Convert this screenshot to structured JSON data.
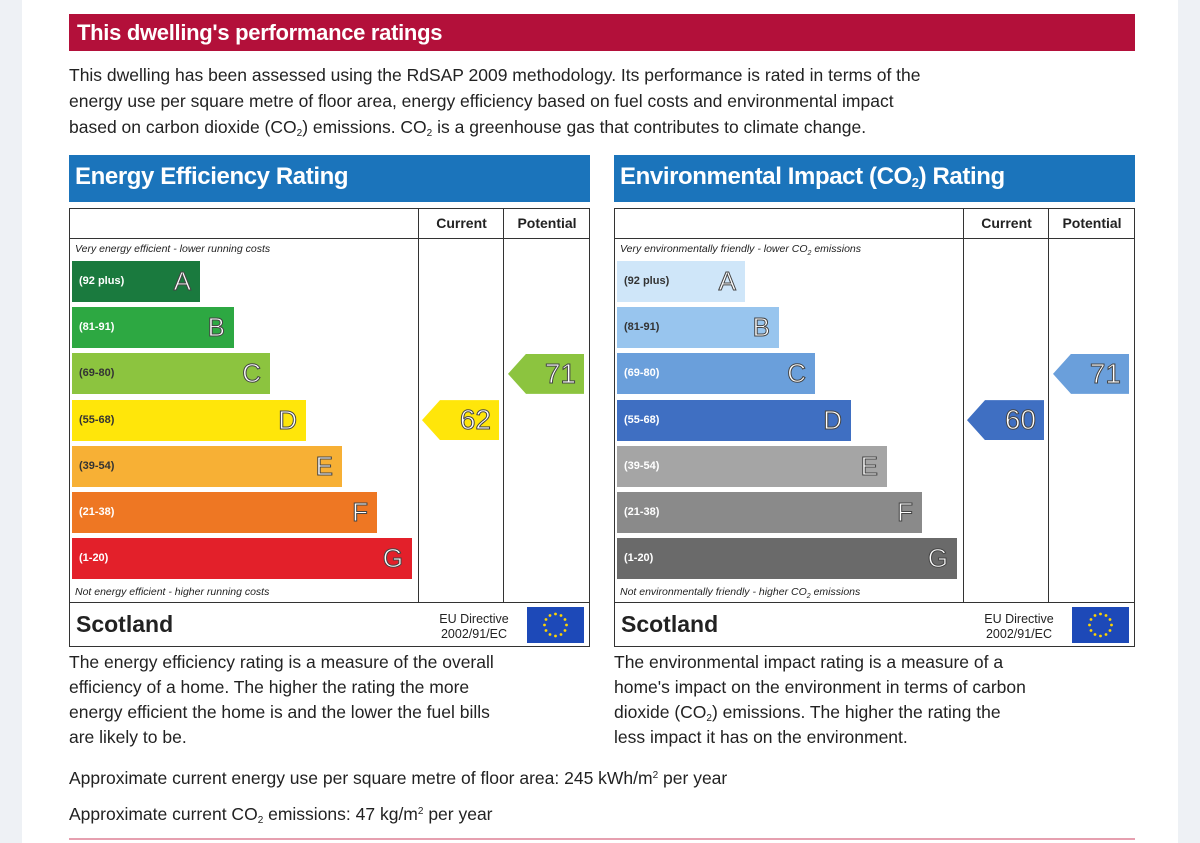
{
  "header": {
    "title": "This dwelling's performance ratings"
  },
  "intro": {
    "line1": "This dwelling has been assessed using the RdSAP 2009 methodology. Its performance is rated in terms of the",
    "line2": "energy use per square metre of floor area, energy efficiency based on fuel costs and environmental impact",
    "line3a": "based on carbon dioxide (CO",
    "sub2": "2",
    "line3b": ") emissions. CO",
    "line3c": " is a greenhouse gas that contributes to climate change."
  },
  "energy": {
    "title": "Energy Efficiency Rating",
    "col_current": "Current",
    "col_potential": "Potential",
    "top_note": "Very energy efficient - lower running costs",
    "bottom_note": "Not energy efficient - higher running costs",
    "bands": [
      {
        "range": "(92 plus)",
        "letter": "A",
        "color": "#1a7a3e"
      },
      {
        "range": "(81-91)",
        "letter": "B",
        "color": "#2da842"
      },
      {
        "range": "(69-80)",
        "letter": "C",
        "color": "#8cc43f"
      },
      {
        "range": "(55-68)",
        "letter": "D",
        "color": "#ffe60a"
      },
      {
        "range": "(39-54)",
        "letter": "E",
        "color": "#f7b035"
      },
      {
        "range": "(21-38)",
        "letter": "F",
        "color": "#ee7723"
      },
      {
        "range": "(1-20)",
        "letter": "G",
        "color": "#e3202a"
      }
    ],
    "current": {
      "value": "62",
      "band": "D",
      "color": "#ffe60a"
    },
    "potential": {
      "value": "71",
      "band": "C",
      "color": "#8cc43f"
    },
    "country": "Scotland",
    "eu_line1": "EU Directive",
    "eu_line2": "2002/91/EC"
  },
  "environment": {
    "title_a": "Environmental Impact (CO",
    "title_sub": "2",
    "title_b": ") Rating",
    "col_current": "Current",
    "col_potential": "Potential",
    "top_note_a": "Very environmentally friendly - lower CO",
    "top_note_sub": "2",
    "top_note_b": " emissions",
    "bottom_note_a": "Not environmentally friendly - higher CO",
    "bottom_note_sub": "2",
    "bottom_note_b": " emissions",
    "bands": [
      {
        "range": "(92 plus)",
        "letter": "A",
        "color": "#cfe6f9"
      },
      {
        "range": "(81-91)",
        "letter": "B",
        "color": "#98c5ee"
      },
      {
        "range": "(69-80)",
        "letter": "C",
        "color": "#6a9fdb"
      },
      {
        "range": "(55-68)",
        "letter": "D",
        "color": "#3f6fc2"
      },
      {
        "range": "(39-54)",
        "letter": "E",
        "color": "#a5a5a5"
      },
      {
        "range": "(21-38)",
        "letter": "F",
        "color": "#8a8a8a"
      },
      {
        "range": "(1-20)",
        "letter": "G",
        "color": "#6a6a6a"
      }
    ],
    "current": {
      "value": "60",
      "band": "D",
      "color": "#3f6fc2"
    },
    "potential": {
      "value": "71",
      "band": "C",
      "color": "#6a9fdb"
    },
    "country": "Scotland",
    "eu_line1": "EU Directive",
    "eu_line2": "2002/91/EC"
  },
  "desc_left": {
    "l1": "The energy efficiency rating is a measure of the overall",
    "l2": "efficiency of a home. The higher the rating the more",
    "l3": "energy efficient the home is and the lower the fuel bills",
    "l4": "are likely to be."
  },
  "desc_right": {
    "l1": "The environmental impact rating is a measure of a",
    "l2": "home's impact on the environment in terms of carbon",
    "l3a": "dioxide (CO",
    "l3sub": "2",
    "l3b": ") emissions. The higher the rating the",
    "l4": "less impact it has on the environment."
  },
  "stats": {
    "energy_use_a": "Approximate current energy use per square metre of floor area: 245 kWh/m",
    "energy_use_sup": "2",
    "energy_use_b": " per year",
    "co2_a": "Approximate current CO",
    "co2_sub": "2",
    "co2_b": " emissions: 47 kg/m",
    "co2_sup": "2",
    "co2_c": " per year"
  }
}
